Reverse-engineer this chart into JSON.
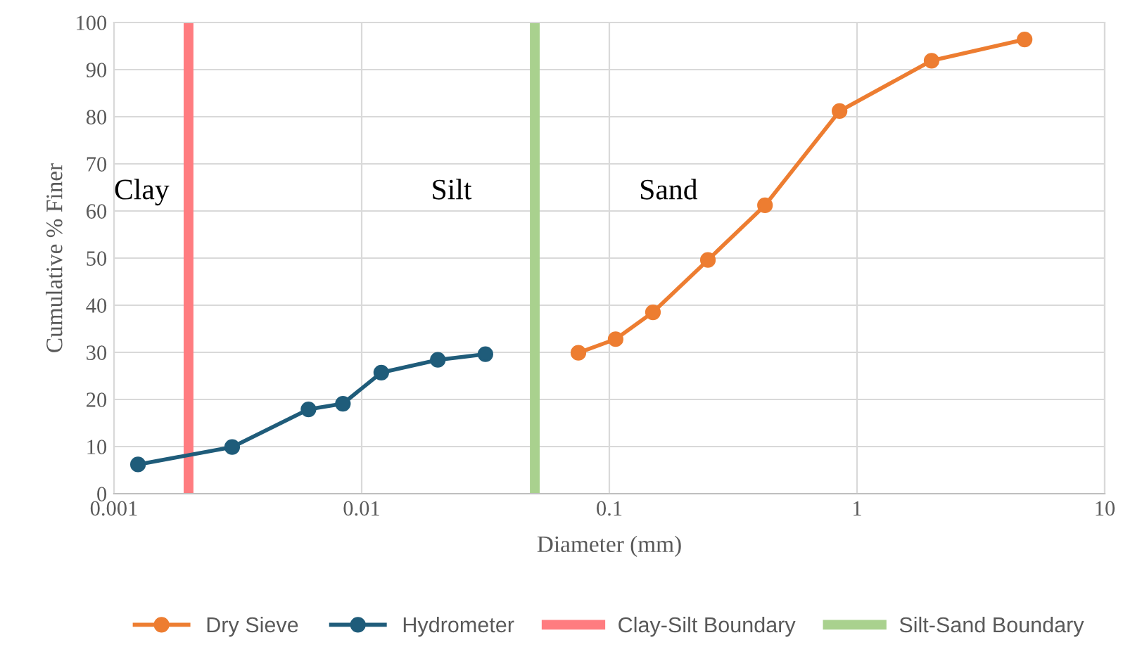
{
  "chart_data": {
    "type": "line",
    "xlabel": "Diameter (mm)",
    "ylabel": "Cumulative % Finer",
    "log": "x",
    "xlim": [
      0.001,
      10
    ],
    "xticks": [
      0.001,
      0.01,
      0.1,
      1,
      10
    ],
    "ylim": [
      0,
      100
    ],
    "yticks": [
      0,
      10,
      20,
      30,
      40,
      50,
      60,
      70,
      80,
      90,
      100
    ],
    "grid": true,
    "legend": "bottom",
    "marker": "circle",
    "line_style": "solid",
    "series": [
      {
        "name": "Dry Sieve",
        "color": "#ed7d31",
        "x": [
          0.075,
          0.106,
          0.15,
          0.25,
          0.425,
          0.85,
          2.0,
          4.75
        ],
        "values": [
          29.9,
          32.8,
          38.5,
          49.6,
          61.2,
          81.2,
          91.9,
          96.4
        ]
      },
      {
        "name": "Hydrometer",
        "color": "#1f5c7a",
        "x": [
          0.00125,
          0.003,
          0.0061,
          0.0084,
          0.012,
          0.0203,
          0.0316
        ],
        "values": [
          6.2,
          9.9,
          17.9,
          19.1,
          25.7,
          28.4,
          29.6
        ]
      }
    ],
    "ref_lines": [
      {
        "axis": "x",
        "value": 0.002,
        "label": "Clay-Silt Boundary",
        "color": "#ff7c80"
      },
      {
        "axis": "x",
        "value": 0.05,
        "label": "Silt-Sand Boundary",
        "color": "#a9d18e"
      }
    ],
    "annotations": [
      "Clay",
      "Silt",
      "Sand"
    ]
  }
}
